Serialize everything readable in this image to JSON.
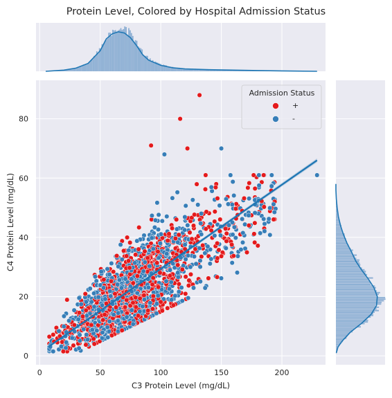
{
  "chart_data": {
    "type": "scatter",
    "title": "Protein Level, Colored by Hospital Admission Status",
    "xlabel": "C3 Protein Level (mg/dL)",
    "ylabel": "C4 Protein Level (mg/dL)",
    "xlim": [
      -3,
      236
    ],
    "ylim": [
      -3,
      93
    ],
    "xticks": [
      0,
      50,
      100,
      150,
      200
    ],
    "yticks": [
      0,
      20,
      40,
      60,
      80
    ],
    "grid": true,
    "legend": {
      "title": "Admission Status",
      "position": "top-right",
      "entries": [
        {
          "label": "+",
          "color": "#e41a1c"
        },
        {
          "label": "-",
          "color": "#377eb8"
        }
      ]
    },
    "regression": {
      "x": [
        7,
        229
      ],
      "y": [
        3,
        66
      ],
      "color": "#1f77b4"
    },
    "outliers": [
      {
        "x": 132,
        "y": 88,
        "group": "+"
      },
      {
        "x": 116,
        "y": 80,
        "group": "+"
      },
      {
        "x": 92,
        "y": 71,
        "group": "+"
      },
      {
        "x": 103,
        "y": 68,
        "group": "-"
      },
      {
        "x": 122,
        "y": 70,
        "group": "+"
      },
      {
        "x": 150,
        "y": 70,
        "group": "-"
      },
      {
        "x": 229,
        "y": 61,
        "group": "-"
      }
    ],
    "marginal_x": {
      "orientation": "top",
      "kde_x": [
        5,
        20,
        30,
        40,
        50,
        55,
        60,
        65,
        70,
        75,
        80,
        85,
        90,
        100,
        110,
        120,
        140,
        160,
        180,
        200,
        229
      ],
      "kde_density": [
        0.0,
        0.03,
        0.08,
        0.2,
        0.52,
        0.82,
        0.95,
        1.0,
        0.97,
        0.85,
        0.65,
        0.42,
        0.28,
        0.15,
        0.09,
        0.06,
        0.04,
        0.03,
        0.02,
        0.01,
        0.0
      ]
    },
    "marginal_y": {
      "orientation": "right",
      "kde_y": [
        1,
        3,
        5,
        8,
        11,
        14,
        17,
        20,
        23,
        26,
        29,
        32,
        35,
        38,
        41,
        44,
        47,
        50,
        53,
        56,
        58
      ],
      "kde_density": [
        0.01,
        0.05,
        0.15,
        0.35,
        0.62,
        0.85,
        0.98,
        1.0,
        0.92,
        0.78,
        0.62,
        0.48,
        0.38,
        0.27,
        0.18,
        0.11,
        0.06,
        0.03,
        0.01,
        0.0,
        0.0
      ]
    },
    "colors": {
      "positive": "#e41a1c",
      "negative": "#377eb8",
      "hist": "#7ea6cf",
      "kde": "#1f77b4",
      "panel_bg": "#eaeaf2",
      "grid": "#ffffff"
    }
  }
}
